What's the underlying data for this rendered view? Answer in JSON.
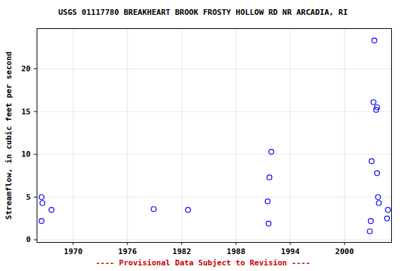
{
  "chart_data": {
    "type": "scatter",
    "title": "USGS 01117780 BREAKHEART BROOK FROSTY HOLLOW RD NR ARCADIA, RI",
    "caption": "---- Provisional Data Subject to Revision ----",
    "y_label": "Streamflow, in cubic feet per second",
    "x": [
      1966.5,
      1966.6,
      1966.5,
      1967.6,
      1978.9,
      1982.7,
      1991.5,
      1991.6,
      1991.7,
      1991.9,
      2002.8,
      2002.9,
      2003.0,
      2003.2,
      2003.3,
      2003.5,
      2003.6,
      2003.6,
      2003.7,
      2003.8,
      2004.7,
      2004.8
    ],
    "values": [
      5.0,
      4.3,
      2.2,
      3.5,
      3.6,
      3.5,
      4.5,
      1.9,
      7.3,
      10.3,
      1.0,
      2.2,
      9.2,
      16.1,
      23.3,
      15.2,
      15.5,
      7.8,
      5.0,
      4.3,
      2.5,
      3.5
    ],
    "color": "#0000ff",
    "marker": "circle_open",
    "xlim": [
      1966.0,
      2005.2
    ],
    "xticks": [
      1970,
      1976,
      1982,
      1988,
      1994,
      2000
    ],
    "ylim": [
      -0.3,
      24.7
    ],
    "yticks": [
      0,
      5,
      10,
      15,
      20
    ],
    "grid": true
  }
}
